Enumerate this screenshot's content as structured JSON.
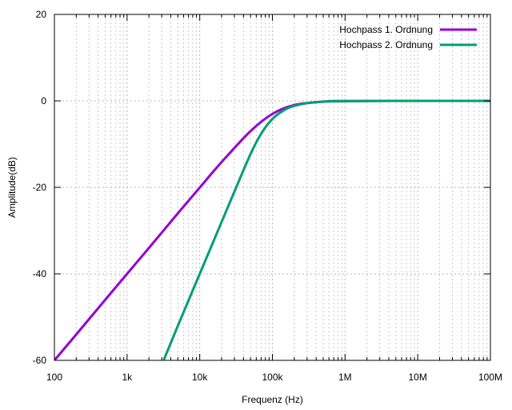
{
  "chart_data": {
    "type": "line",
    "xlabel": "Frequenz (Hz)",
    "ylabel": "Amplitude(dB)",
    "x_scale": "log",
    "xlim": [
      100,
      100000000
    ],
    "ylim": [
      -60,
      20
    ],
    "x_ticks": [
      100,
      1000,
      10000,
      100000,
      1000000,
      10000000,
      100000000
    ],
    "x_tick_labels": [
      "100",
      "1k",
      "10k",
      "100k",
      "1M",
      "10M",
      "100M"
    ],
    "y_ticks": [
      -60,
      -40,
      -20,
      0,
      20
    ],
    "y_tick_labels": [
      "-60",
      "-40",
      "-20",
      "0",
      "20"
    ],
    "grid": true,
    "legend_position": "top-right",
    "series": [
      {
        "name": "Hochpass 1. Ordnung",
        "color": "#9400d3",
        "x": [
          100,
          200,
          500,
          1000,
          2000,
          5000,
          10000,
          20000,
          50000,
          100000,
          200000,
          500000,
          1000000,
          10000000,
          100000000
        ],
        "y": [
          -60,
          -54,
          -46,
          -40,
          -34,
          -26,
          -20.04,
          -14.15,
          -6.99,
          -3.01,
          -0.97,
          -0.17,
          -0.04,
          0,
          0
        ]
      },
      {
        "name": "Hochpass 2. Ordnung",
        "color": "#009e73",
        "x": [
          3200,
          5000,
          10000,
          20000,
          30000,
          50000,
          70000,
          100000,
          150000,
          200000,
          300000,
          500000,
          1000000,
          10000000,
          100000000
        ],
        "y": [
          -59.9,
          -52.0,
          -40.0,
          -28.0,
          -20.98,
          -12.3,
          -7.59,
          -4.17,
          -1.98,
          -1.15,
          -0.52,
          -0.19,
          -0.05,
          0,
          0
        ]
      }
    ]
  }
}
